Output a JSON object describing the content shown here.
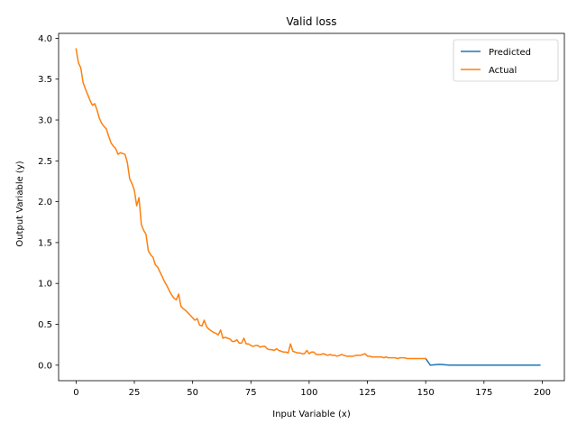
{
  "chart_data": {
    "type": "line",
    "title": "Valid loss",
    "xlabel": "Input Variable (x)",
    "ylabel": "Output Variable (y)",
    "xlim": [
      -7.5,
      209.5
    ],
    "ylim": [
      -0.19,
      4.06
    ],
    "xticks": [
      0,
      25,
      50,
      75,
      100,
      125,
      150,
      175,
      200
    ],
    "yticks": [
      0.0,
      0.5,
      1.0,
      1.5,
      2.0,
      2.5,
      3.0,
      3.5,
      4.0
    ],
    "xtick_labels": [
      "0",
      "25",
      "50",
      "75",
      "100",
      "125",
      "150",
      "175",
      "200"
    ],
    "ytick_labels": [
      "0.0",
      "0.5",
      "1.0",
      "1.5",
      "2.0",
      "2.5",
      "3.0",
      "3.5",
      "4.0"
    ],
    "grid": false,
    "legend_position": "top-right",
    "series": [
      {
        "name": "Predicted",
        "color": "#1f77b4",
        "x": [
          150,
          152,
          156,
          160,
          170,
          180,
          190,
          199
        ],
        "y": [
          0.08,
          0.0,
          0.01,
          0.0,
          0.0,
          0.0,
          0.0,
          0.0
        ]
      },
      {
        "name": "Actual",
        "color": "#ff7f0e",
        "x": [
          0,
          1,
          2,
          3,
          4,
          5,
          6,
          7,
          8,
          9,
          10,
          11,
          12,
          13,
          14,
          15,
          16,
          17,
          18,
          19,
          20,
          21,
          22,
          23,
          24,
          25,
          26,
          27,
          28,
          29,
          30,
          31,
          32,
          33,
          34,
          35,
          36,
          37,
          38,
          39,
          40,
          41,
          42,
          43,
          44,
          45,
          46,
          47,
          48,
          49,
          50,
          51,
          52,
          53,
          54,
          55,
          56,
          57,
          58,
          59,
          60,
          61,
          62,
          63,
          64,
          65,
          66,
          67,
          68,
          69,
          70,
          71,
          72,
          73,
          74,
          75,
          76,
          77,
          78,
          79,
          80,
          81,
          82,
          83,
          84,
          85,
          86,
          87,
          88,
          89,
          90,
          91,
          92,
          93,
          94,
          95,
          96,
          97,
          98,
          99,
          100,
          101,
          102,
          103,
          104,
          105,
          106,
          107,
          108,
          109,
          110,
          111,
          112,
          113,
          114,
          115,
          116,
          117,
          118,
          119,
          120,
          121,
          122,
          123,
          124,
          125,
          126,
          127,
          128,
          129,
          130,
          131,
          132,
          133,
          134,
          135,
          136,
          137,
          138,
          139,
          140,
          141,
          142,
          143,
          144,
          145,
          146,
          147,
          148,
          149,
          150
        ],
        "y": [
          3.87,
          3.7,
          3.64,
          3.46,
          3.38,
          3.31,
          3.24,
          3.18,
          3.2,
          3.12,
          3.02,
          2.96,
          2.92,
          2.89,
          2.8,
          2.72,
          2.68,
          2.65,
          2.58,
          2.6,
          2.59,
          2.58,
          2.48,
          2.28,
          2.22,
          2.14,
          1.95,
          2.05,
          1.72,
          1.65,
          1.6,
          1.4,
          1.35,
          1.32,
          1.23,
          1.2,
          1.14,
          1.08,
          1.02,
          0.97,
          0.91,
          0.86,
          0.82,
          0.8,
          0.87,
          0.72,
          0.69,
          0.67,
          0.64,
          0.61,
          0.58,
          0.55,
          0.57,
          0.49,
          0.48,
          0.55,
          0.47,
          0.44,
          0.42,
          0.4,
          0.39,
          0.37,
          0.43,
          0.33,
          0.34,
          0.33,
          0.32,
          0.29,
          0.29,
          0.31,
          0.27,
          0.27,
          0.33,
          0.26,
          0.26,
          0.24,
          0.23,
          0.24,
          0.24,
          0.22,
          0.23,
          0.23,
          0.2,
          0.19,
          0.19,
          0.18,
          0.2,
          0.18,
          0.17,
          0.16,
          0.16,
          0.15,
          0.26,
          0.17,
          0.16,
          0.15,
          0.15,
          0.14,
          0.14,
          0.18,
          0.14,
          0.16,
          0.16,
          0.13,
          0.13,
          0.13,
          0.14,
          0.13,
          0.12,
          0.13,
          0.12,
          0.12,
          0.11,
          0.12,
          0.13,
          0.12,
          0.11,
          0.11,
          0.11,
          0.11,
          0.12,
          0.12,
          0.12,
          0.13,
          0.14,
          0.11,
          0.11,
          0.1,
          0.1,
          0.1,
          0.1,
          0.1,
          0.09,
          0.1,
          0.09,
          0.09,
          0.09,
          0.09,
          0.08,
          0.09,
          0.09,
          0.09,
          0.08,
          0.08,
          0.08,
          0.08,
          0.08,
          0.08,
          0.08,
          0.08,
          0.08
        ]
      }
    ]
  }
}
